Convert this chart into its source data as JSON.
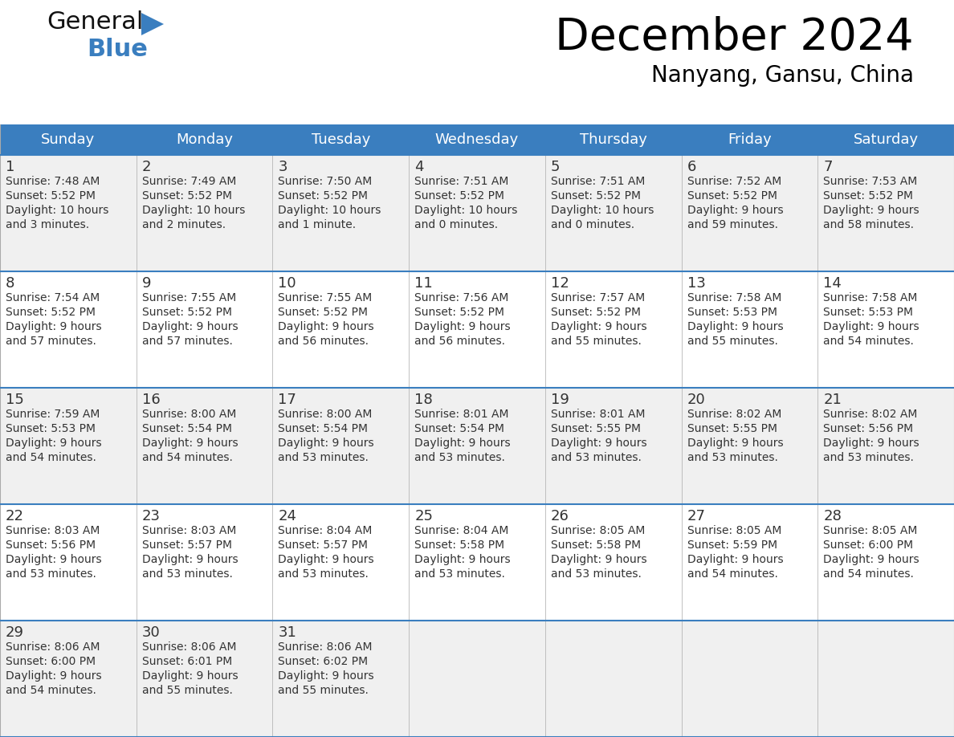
{
  "title": "December 2024",
  "subtitle": "Nanyang, Gansu, China",
  "header_bg": "#3a7ebf",
  "header_text": "#ffffff",
  "cell_bg_odd": "#f0f0f0",
  "cell_bg_even": "#ffffff",
  "border_color": "#3a7ebf",
  "grid_color": "#aaaaaa",
  "day_headers": [
    "Sunday",
    "Monday",
    "Tuesday",
    "Wednesday",
    "Thursday",
    "Friday",
    "Saturday"
  ],
  "weeks": [
    [
      {
        "day": 1,
        "sunrise": "7:48 AM",
        "sunset": "5:52 PM",
        "daylight": "10 hours\nand 3 minutes."
      },
      {
        "day": 2,
        "sunrise": "7:49 AM",
        "sunset": "5:52 PM",
        "daylight": "10 hours\nand 2 minutes."
      },
      {
        "day": 3,
        "sunrise": "7:50 AM",
        "sunset": "5:52 PM",
        "daylight": "10 hours\nand 1 minute."
      },
      {
        "day": 4,
        "sunrise": "7:51 AM",
        "sunset": "5:52 PM",
        "daylight": "10 hours\nand 0 minutes."
      },
      {
        "day": 5,
        "sunrise": "7:51 AM",
        "sunset": "5:52 PM",
        "daylight": "10 hours\nand 0 minutes."
      },
      {
        "day": 6,
        "sunrise": "7:52 AM",
        "sunset": "5:52 PM",
        "daylight": "9 hours\nand 59 minutes."
      },
      {
        "day": 7,
        "sunrise": "7:53 AM",
        "sunset": "5:52 PM",
        "daylight": "9 hours\nand 58 minutes."
      }
    ],
    [
      {
        "day": 8,
        "sunrise": "7:54 AM",
        "sunset": "5:52 PM",
        "daylight": "9 hours\nand 57 minutes."
      },
      {
        "day": 9,
        "sunrise": "7:55 AM",
        "sunset": "5:52 PM",
        "daylight": "9 hours\nand 57 minutes."
      },
      {
        "day": 10,
        "sunrise": "7:55 AM",
        "sunset": "5:52 PM",
        "daylight": "9 hours\nand 56 minutes."
      },
      {
        "day": 11,
        "sunrise": "7:56 AM",
        "sunset": "5:52 PM",
        "daylight": "9 hours\nand 56 minutes."
      },
      {
        "day": 12,
        "sunrise": "7:57 AM",
        "sunset": "5:52 PM",
        "daylight": "9 hours\nand 55 minutes."
      },
      {
        "day": 13,
        "sunrise": "7:58 AM",
        "sunset": "5:53 PM",
        "daylight": "9 hours\nand 55 minutes."
      },
      {
        "day": 14,
        "sunrise": "7:58 AM",
        "sunset": "5:53 PM",
        "daylight": "9 hours\nand 54 minutes."
      }
    ],
    [
      {
        "day": 15,
        "sunrise": "7:59 AM",
        "sunset": "5:53 PM",
        "daylight": "9 hours\nand 54 minutes."
      },
      {
        "day": 16,
        "sunrise": "8:00 AM",
        "sunset": "5:54 PM",
        "daylight": "9 hours\nand 54 minutes."
      },
      {
        "day": 17,
        "sunrise": "8:00 AM",
        "sunset": "5:54 PM",
        "daylight": "9 hours\nand 53 minutes."
      },
      {
        "day": 18,
        "sunrise": "8:01 AM",
        "sunset": "5:54 PM",
        "daylight": "9 hours\nand 53 minutes."
      },
      {
        "day": 19,
        "sunrise": "8:01 AM",
        "sunset": "5:55 PM",
        "daylight": "9 hours\nand 53 minutes."
      },
      {
        "day": 20,
        "sunrise": "8:02 AM",
        "sunset": "5:55 PM",
        "daylight": "9 hours\nand 53 minutes."
      },
      {
        "day": 21,
        "sunrise": "8:02 AM",
        "sunset": "5:56 PM",
        "daylight": "9 hours\nand 53 minutes."
      }
    ],
    [
      {
        "day": 22,
        "sunrise": "8:03 AM",
        "sunset": "5:56 PM",
        "daylight": "9 hours\nand 53 minutes."
      },
      {
        "day": 23,
        "sunrise": "8:03 AM",
        "sunset": "5:57 PM",
        "daylight": "9 hours\nand 53 minutes."
      },
      {
        "day": 24,
        "sunrise": "8:04 AM",
        "sunset": "5:57 PM",
        "daylight": "9 hours\nand 53 minutes."
      },
      {
        "day": 25,
        "sunrise": "8:04 AM",
        "sunset": "5:58 PM",
        "daylight": "9 hours\nand 53 minutes."
      },
      {
        "day": 26,
        "sunrise": "8:05 AM",
        "sunset": "5:58 PM",
        "daylight": "9 hours\nand 53 minutes."
      },
      {
        "day": 27,
        "sunrise": "8:05 AM",
        "sunset": "5:59 PM",
        "daylight": "9 hours\nand 54 minutes."
      },
      {
        "day": 28,
        "sunrise": "8:05 AM",
        "sunset": "6:00 PM",
        "daylight": "9 hours\nand 54 minutes."
      }
    ],
    [
      {
        "day": 29,
        "sunrise": "8:06 AM",
        "sunset": "6:00 PM",
        "daylight": "9 hours\nand 54 minutes."
      },
      {
        "day": 30,
        "sunrise": "8:06 AM",
        "sunset": "6:01 PM",
        "daylight": "9 hours\nand 55 minutes."
      },
      {
        "day": 31,
        "sunrise": "8:06 AM",
        "sunset": "6:02 PM",
        "daylight": "9 hours\nand 55 minutes."
      },
      null,
      null,
      null,
      null
    ]
  ],
  "logo_text_general": "General",
  "logo_text_blue": "Blue",
  "logo_blue_color": "#3a7ebf",
  "logo_dark_color": "#111111",
  "title_fontsize": 40,
  "subtitle_fontsize": 20,
  "header_fontsize": 13,
  "day_num_fontsize": 13,
  "cell_text_fontsize": 10,
  "fig_width": 11.88,
  "fig_height": 9.18,
  "fig_dpi": 100
}
